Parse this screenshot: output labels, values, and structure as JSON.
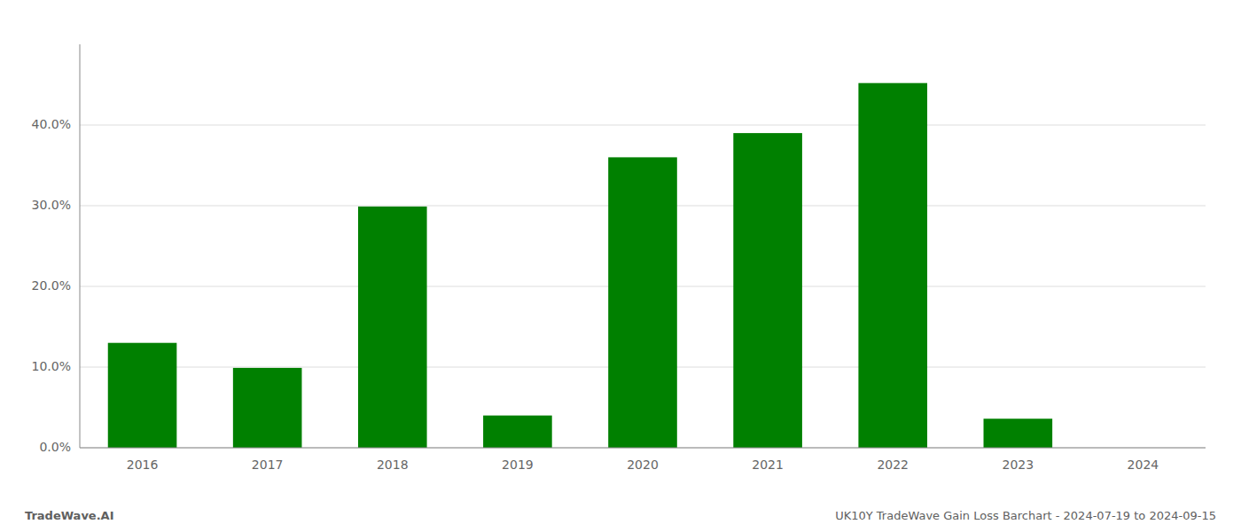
{
  "chart_data": {
    "type": "bar",
    "categories": [
      "2016",
      "2017",
      "2018",
      "2019",
      "2020",
      "2021",
      "2022",
      "2023",
      "2024"
    ],
    "values": [
      0.13,
      0.099,
      0.299,
      0.04,
      0.36,
      0.39,
      0.452,
      0.036,
      0.0
    ],
    "color": "#008000",
    "ylim": [
      0.0,
      0.5
    ],
    "yticks": [
      {
        "value": 0.0,
        "label": "0.0%"
      },
      {
        "value": 0.1,
        "label": "10.0%"
      },
      {
        "value": 0.2,
        "label": "20.0%"
      },
      {
        "value": 0.3,
        "label": "30.0%"
      },
      {
        "value": 0.4,
        "label": "40.0%"
      }
    ],
    "grid": true,
    "annotations": [
      "TradeWave.AI",
      "UK10Y TradeWave Gain Loss Barchart - 2024-07-19 to 2024-09-15"
    ]
  }
}
